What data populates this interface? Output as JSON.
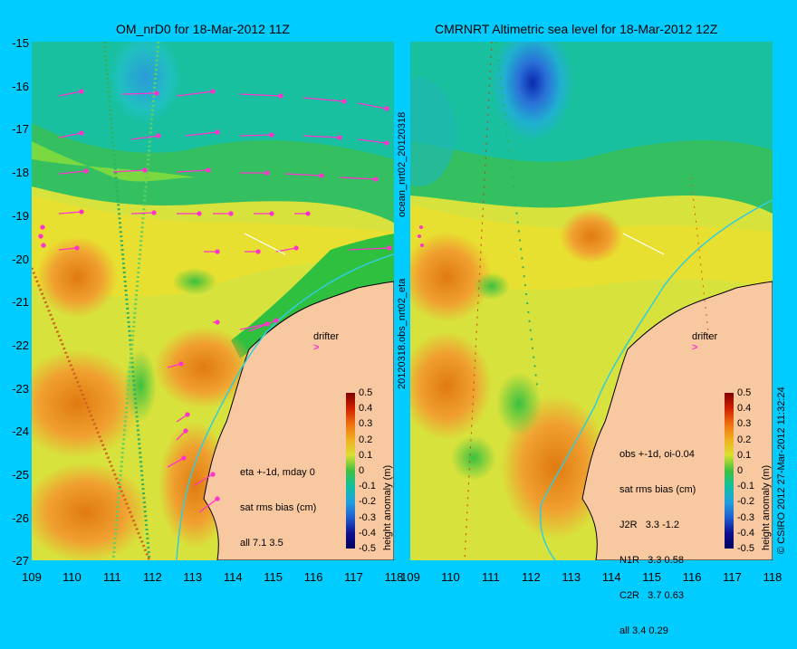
{
  "left_panel": {
    "title": "OM_nrD0 for 18-Mar-2012 11Z",
    "stats_lines": [
      "eta +-1d, mday 0",
      "sat rms bias (cm)",
      "all 7.1 3.5"
    ],
    "drifter_label": "drifter",
    "side_label": "ocean_nrt02_20120318"
  },
  "right_panel": {
    "title": "CMRNRT Altimetric sea level  for 18-Mar-2012 12Z",
    "stats_lines": [
      "obs +-1d, oi-0.04",
      "sat rms bias (cm)",
      "J2R   3.3 -1.2",
      "N1R   3.3 0.58",
      "C2R   3.7 0.63",
      "all 3.4 0.29"
    ],
    "drifter_label": "drifter",
    "side_label": "20120318.obs_nrt02_eta"
  },
  "y_ticks": [
    "-15",
    "-16",
    "-17",
    "-18",
    "-19",
    "-20",
    "-21",
    "-22",
    "-23",
    "-24",
    "-25",
    "-26",
    "-27"
  ],
  "x_ticks": [
    "109",
    "110",
    "111",
    "112",
    "113",
    "114",
    "115",
    "116",
    "117",
    "118"
  ],
  "colorbar": {
    "ticks": [
      "0.5",
      "0.4",
      "0.3",
      "0.2",
      "0.1",
      "0",
      "-0.1",
      "-0.2",
      "-0.3",
      "-0.4",
      "-0.5"
    ],
    "title": "height anomaly (m)"
  },
  "copyright": "© CSIRO 2012  27-Mar-2012 11:32:24",
  "colors": {
    "background": "#00ccff",
    "land": "#f8c8a0",
    "vector": "#ff33cc",
    "drifter": "#ff33cc",
    "coast_current": "#33ccdd"
  }
}
